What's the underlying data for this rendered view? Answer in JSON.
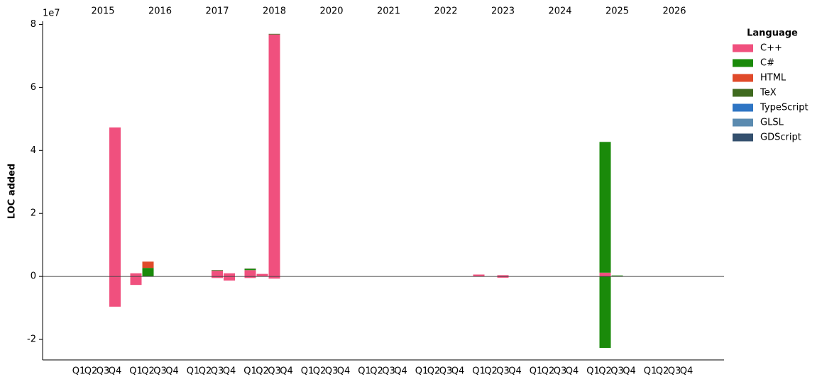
{
  "chart_data": {
    "type": "bar",
    "stacked": true,
    "y_label": "LOC added",
    "y_offset_label": "1e7",
    "legend_title": "Language",
    "years": [
      "2015",
      "2016",
      "2017",
      "2018",
      "2020",
      "2021",
      "2022",
      "2023",
      "2024",
      "2025",
      "2026"
    ],
    "quarters": [
      "Q1",
      "Q2",
      "Q3",
      "Q4"
    ],
    "ylim": [
      -2.65,
      8.1
    ],
    "yticks": [
      -2,
      0,
      2,
      4,
      6,
      8
    ],
    "series": [
      {
        "name": "C++",
        "color": "#f0507e",
        "values": [
          0,
          0,
          0,
          4.73,
          0.1,
          0,
          0,
          0,
          0,
          0,
          0.18,
          0.1,
          0.2,
          0.08,
          7.68,
          0,
          0,
          0,
          0,
          0,
          0,
          0,
          0,
          0,
          0,
          0,
          0,
          0,
          0.06,
          0,
          0.04,
          0,
          0,
          0,
          0,
          0,
          0,
          0.12,
          0,
          0,
          0,
          0,
          0,
          0
        ],
        "neg_values": [
          0,
          0,
          0,
          -0.96,
          -0.27,
          0,
          0,
          0,
          0,
          0,
          -0.05,
          -0.13,
          -0.05,
          0,
          -0.07,
          0,
          0,
          0,
          0,
          0,
          0,
          0,
          0,
          0,
          0,
          0,
          0,
          0,
          0,
          0,
          -0.04,
          0,
          0,
          0,
          0,
          0,
          0,
          0,
          0,
          0,
          0,
          0,
          0,
          0
        ]
      },
      {
        "name": "C#",
        "color": "#1a8a0a",
        "values": [
          0,
          0,
          0,
          0,
          0,
          0.27,
          0,
          0,
          0,
          0,
          0,
          0,
          0.03,
          0,
          0,
          0,
          0,
          0,
          0,
          0,
          0,
          0,
          0,
          0,
          0,
          0,
          0,
          0,
          0,
          0,
          0,
          0,
          0,
          0,
          0,
          0,
          0,
          4.15,
          0.03,
          0,
          0,
          0,
          0,
          0
        ],
        "neg_values": [
          0,
          0,
          0,
          0,
          0,
          0,
          0,
          0,
          0,
          0,
          0,
          0,
          0,
          0,
          0,
          0,
          0,
          0,
          0,
          0,
          0,
          0,
          0,
          0,
          0,
          0,
          0,
          0,
          0,
          0,
          0,
          0,
          0,
          0,
          0,
          0,
          0,
          -2.27,
          0,
          0,
          0,
          0,
          0,
          0
        ]
      },
      {
        "name": "HTML",
        "color": "#e04a2a",
        "values": [
          0,
          0,
          0,
          0,
          0,
          0.2,
          0,
          0,
          0,
          0,
          0,
          0,
          0,
          0,
          0,
          0,
          0,
          0,
          0,
          0,
          0,
          0,
          0,
          0,
          0,
          0,
          0,
          0,
          0,
          0,
          0,
          0,
          0,
          0,
          0,
          0,
          0,
          0,
          0,
          0,
          0,
          0,
          0,
          0
        ],
        "neg_values": [
          0,
          0,
          0,
          0,
          0,
          0,
          0,
          0,
          0,
          0,
          0,
          0,
          0,
          0,
          0,
          0,
          0,
          0,
          0,
          0,
          0,
          0,
          0,
          0,
          0,
          0,
          0,
          0,
          0,
          0,
          0,
          0,
          0,
          0,
          0,
          0,
          0,
          0,
          0,
          0,
          0,
          0,
          0,
          0
        ]
      },
      {
        "name": "TeX",
        "color": "#3f6a1f",
        "values": [
          0,
          0,
          0,
          0,
          0,
          0,
          0,
          0,
          0,
          0,
          0.02,
          0,
          0.02,
          0,
          0.02,
          0,
          0,
          0,
          0,
          0,
          0,
          0,
          0,
          0,
          0,
          0,
          0,
          0,
          0,
          0,
          0,
          0,
          0,
          0,
          0,
          0,
          0,
          0,
          0,
          0,
          0,
          0,
          0,
          0
        ],
        "neg_values": [
          0,
          0,
          0,
          0,
          0,
          0,
          0,
          0,
          0,
          0,
          0,
          0,
          0,
          0,
          0,
          0,
          0,
          0,
          0,
          0,
          0,
          0,
          0,
          0,
          0,
          0,
          0,
          0,
          0,
          0,
          0,
          0,
          0,
          0,
          0,
          0,
          0,
          0,
          0,
          0,
          0,
          0,
          0,
          0
        ]
      },
      {
        "name": "TypeScript",
        "color": "#2e75c4",
        "values": [
          0,
          0,
          0,
          0,
          0,
          0,
          0,
          0,
          0,
          0,
          0,
          0,
          0,
          0,
          0,
          0,
          0,
          0,
          0,
          0,
          0,
          0,
          0,
          0,
          0,
          0,
          0,
          0,
          0,
          0,
          0,
          0,
          0,
          0,
          0,
          0,
          0,
          0,
          0,
          0,
          0,
          0,
          0,
          0
        ],
        "neg_values": [
          0,
          0,
          0,
          0,
          0,
          0,
          0,
          0,
          0,
          0,
          0,
          0,
          0,
          0,
          0,
          0,
          0,
          0,
          0,
          0,
          0,
          0,
          0,
          0,
          0,
          0,
          0,
          0,
          0,
          0,
          0,
          0,
          0,
          0,
          0,
          0,
          0,
          0,
          0,
          0,
          0,
          0,
          0,
          0
        ]
      },
      {
        "name": "GLSL",
        "color": "#5b8bb0",
        "values": [
          0,
          0,
          0,
          0,
          0,
          0,
          0,
          0,
          0,
          0,
          0,
          0,
          0,
          0,
          0,
          0,
          0,
          0,
          0,
          0,
          0,
          0,
          0,
          0,
          0,
          0,
          0,
          0,
          0,
          0,
          0,
          0,
          0,
          0,
          0,
          0,
          0,
          0,
          0,
          0,
          0,
          0,
          0,
          0
        ],
        "neg_values": [
          0,
          0,
          0,
          0,
          0,
          0,
          0,
          0,
          0,
          0,
          0,
          0,
          0,
          0,
          0,
          0,
          0,
          0,
          0,
          0,
          0,
          0,
          0,
          0,
          0,
          0,
          0,
          0,
          0,
          0,
          0,
          0,
          0,
          0,
          0,
          0,
          0,
          0,
          0,
          0,
          0,
          0,
          0,
          0
        ]
      },
      {
        "name": "GDScript",
        "color": "#34506e",
        "values": [
          0,
          0,
          0,
          0,
          0,
          0,
          0,
          0,
          0,
          0,
          0,
          0,
          0,
          0,
          0,
          0,
          0,
          0,
          0,
          0,
          0,
          0,
          0,
          0,
          0,
          0,
          0,
          0,
          0,
          0,
          0,
          0,
          0,
          0,
          0,
          0,
          0,
          0,
          0,
          0,
          0,
          0,
          0,
          0
        ],
        "neg_values": [
          0,
          0,
          0,
          0,
          0,
          0,
          0,
          0,
          0,
          0,
          0,
          0,
          0,
          0,
          0,
          0,
          0,
          0,
          0,
          0,
          0,
          0,
          0,
          0,
          0,
          0,
          0,
          0,
          0,
          0,
          0,
          0,
          0,
          0,
          0,
          0,
          0,
          0,
          0,
          0,
          0,
          0,
          0,
          0
        ]
      }
    ]
  }
}
